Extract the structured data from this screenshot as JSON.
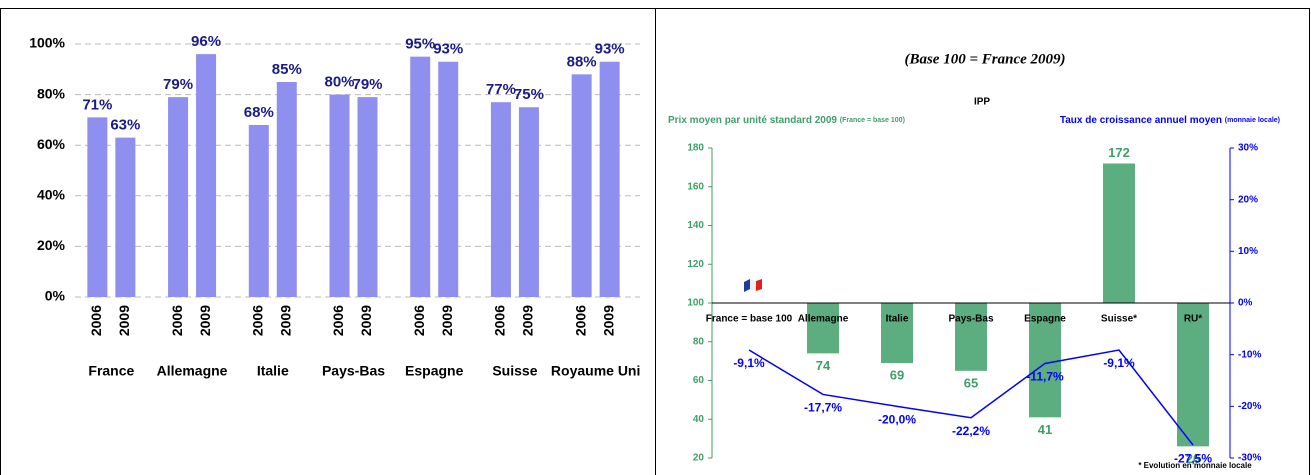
{
  "chart_data": [
    {
      "type": "bar",
      "categories": [
        "France",
        "Allemagne",
        "Italie",
        "Pays-Bas",
        "Espagne",
        "Suisse",
        "Royaume Uni"
      ],
      "series": [
        {
          "name": "2006",
          "color": "#8f8fef",
          "values": [
            71,
            79,
            68,
            80,
            95,
            77,
            88
          ],
          "value_labels": [
            "71%",
            "79%",
            "68%",
            "80%",
            "95%",
            "77%",
            "88%"
          ]
        },
        {
          "name": "2009",
          "color": "#8f8fef",
          "values": [
            63,
            96,
            85,
            79,
            93,
            75,
            93
          ],
          "value_labels": [
            "63%",
            "96%",
            "85%",
            "79%",
            "93%",
            "75%",
            "93%"
          ]
        }
      ],
      "ylim": [
        0,
        100
      ],
      "yticks": [
        {
          "value": 0,
          "label": "0%"
        },
        {
          "value": 20,
          "label": "20%"
        },
        {
          "value": 40,
          "label": "40%"
        },
        {
          "value": 60,
          "label": "60%"
        },
        {
          "value": 80,
          "label": "80%"
        },
        {
          "value": 100,
          "label": "100%"
        }
      ],
      "grid": true
    },
    {
      "type": "combo",
      "title": "(Base 100 = France 2009)",
      "subtitle": "IPP",
      "y_label": "Prix moyen par unité standard 2009",
      "y_label_note": "(France = base 100)",
      "y2_label": "Taux de croissance annuel moyen",
      "y2_label_note": "(monnaie locale)",
      "footnote": "* Evolution en monnaie locale",
      "categories": [
        "France = base 100",
        "Allemagne",
        "Italie",
        "Pays-Bas",
        "Espagne",
        "Suisse*",
        "RU*"
      ],
      "bar_base": 100,
      "series": [
        {
          "type": "bar",
          "color": "#3f9f68",
          "values": [
            null,
            74,
            69,
            65,
            41,
            172,
            26
          ]
        },
        {
          "type": "line",
          "axis": "y2",
          "color": "#0000ff",
          "values": [
            -9.1,
            -17.7,
            -20.0,
            -22.2,
            -11.7,
            -9.1,
            -27.5
          ],
          "value_labels": [
            "-9,1%",
            "-17,7%",
            "-20,0%",
            "-22,2%",
            "-11,7%",
            "-9,1%",
            "-27,5%"
          ]
        }
      ],
      "ylim": [
        20,
        180
      ],
      "yticks": [
        20,
        40,
        60,
        80,
        100,
        120,
        140,
        160,
        180
      ],
      "y2lim": [
        -30,
        30
      ],
      "y2ticks": [
        {
          "value": -30,
          "label": "-30%"
        },
        {
          "value": -20,
          "label": "-20%"
        },
        {
          "value": -10,
          "label": "-10%"
        },
        {
          "value": 0,
          "label": "0%"
        },
        {
          "value": 10,
          "label": "10%"
        },
        {
          "value": 20,
          "label": "20%"
        },
        {
          "value": 30,
          "label": "30%"
        }
      ]
    }
  ]
}
